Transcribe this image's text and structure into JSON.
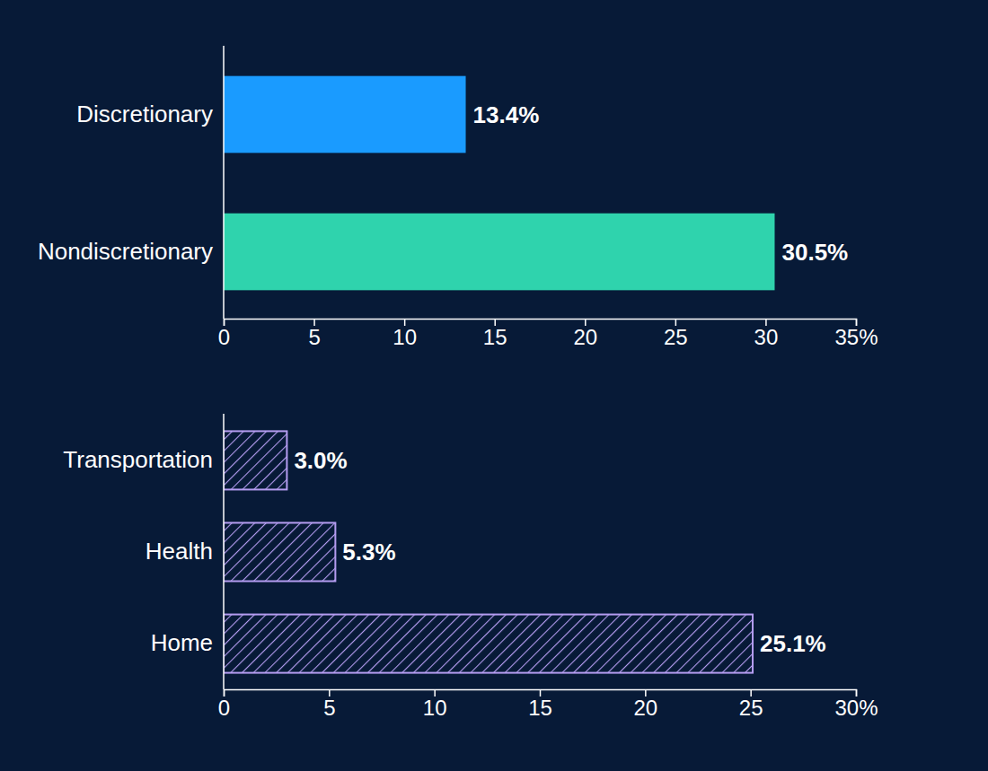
{
  "chart_data": [
    {
      "type": "bar",
      "orientation": "horizontal",
      "categories": [
        "Discretionary",
        "Nondiscretionary"
      ],
      "values": [
        13.4,
        30.5
      ],
      "value_labels": [
        "13.4%",
        "30.5%"
      ],
      "colors": [
        "#1a9bff",
        "#2fd3ad"
      ],
      "xlim": [
        0,
        35
      ],
      "xticks": [
        0,
        5,
        10,
        15,
        20,
        25,
        30,
        {
          "value": 35,
          "label": "35%"
        }
      ],
      "data_labels": true
    },
    {
      "type": "bar",
      "orientation": "horizontal",
      "categories": [
        "Transportation",
        "Health",
        "Home"
      ],
      "values": [
        3.0,
        5.3,
        25.1
      ],
      "value_labels": [
        "3.0%",
        "5.3%",
        "25.1%"
      ],
      "color": "#b49cf0",
      "xlim": [
        0,
        30
      ],
      "xticks": [
        0,
        5,
        10,
        15,
        20,
        25,
        {
          "value": 30,
          "label": "30%"
        }
      ],
      "data_labels": true
    }
  ]
}
